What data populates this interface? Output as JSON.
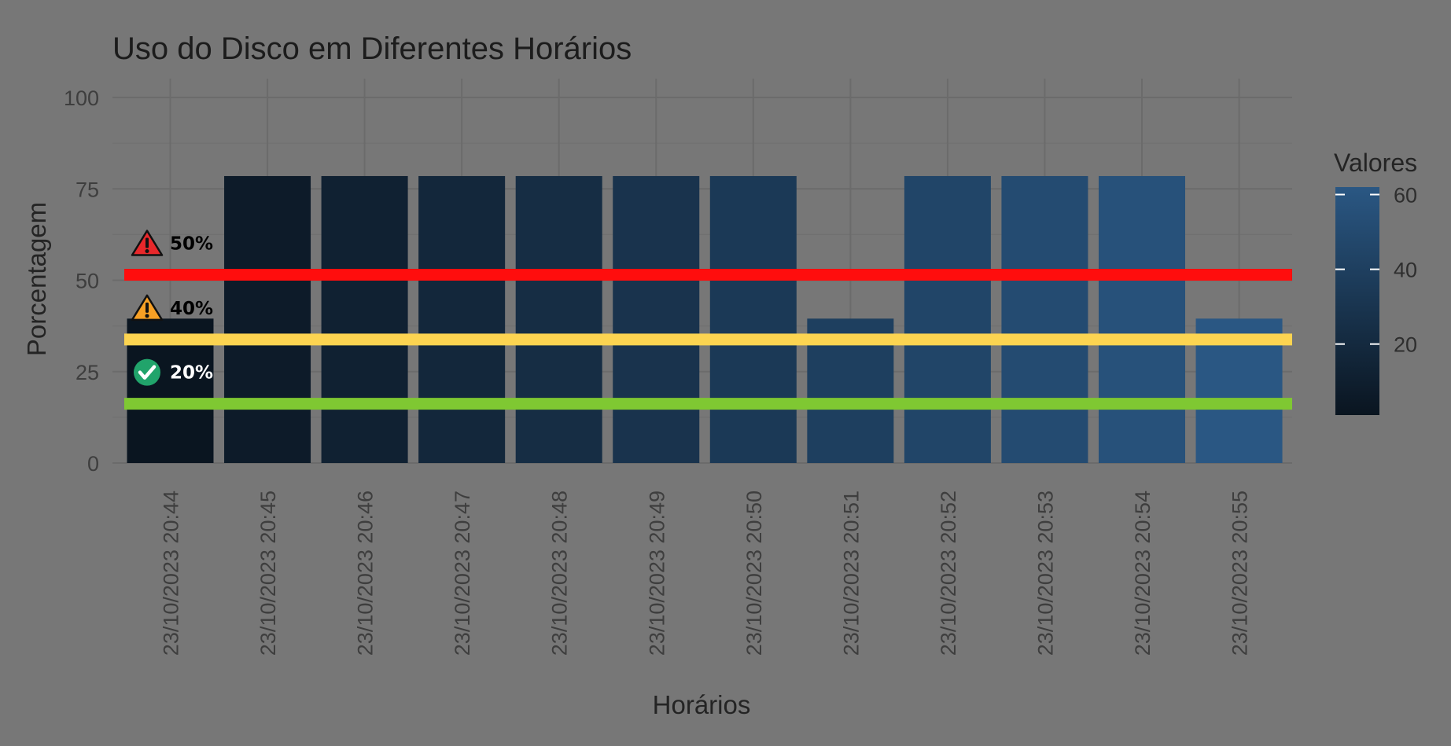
{
  "chart_data": {
    "type": "bar",
    "title": "Uso do Disco em Diferentes Horários",
    "xlabel": "Horários",
    "ylabel": "Porcentagem",
    "ylim": [
      0,
      100
    ],
    "yticks": [
      0,
      25,
      50,
      75,
      100
    ],
    "grid": true,
    "categories": [
      "23/10/2023 20:44",
      "23/10/2023 20:45",
      "23/10/2023 20:46",
      "23/10/2023 20:47",
      "23/10/2023 20:48",
      "23/10/2023 20:49",
      "23/10/2023 20:50",
      "23/10/2023 20:51",
      "23/10/2023 20:52",
      "23/10/2023 20:53",
      "23/10/2023 20:54",
      "23/10/2023 20:55"
    ],
    "values": [
      39.5,
      78.5,
      78.5,
      78.5,
      78.5,
      78.5,
      78.5,
      39.5,
      78.5,
      78.5,
      78.5,
      39.5
    ],
    "legend": {
      "title": "Valores",
      "position": "right",
      "ticks": [
        20,
        40,
        60
      ],
      "range": [
        1,
        62
      ],
      "color_low": "#0a1520",
      "color_high": "#2a5783"
    },
    "thresholds": [
      {
        "label": "50%",
        "y": 51.5,
        "color": "#ff0d0d",
        "icon": "warning-red-icon",
        "label_color": "#000000"
      },
      {
        "label": "40%",
        "y": 33.8,
        "color": "#fcd451",
        "icon": "warning-orange-icon",
        "label_color": "#000000"
      },
      {
        "label": "20%",
        "y": 16.2,
        "color": "#7fc832",
        "icon": "check-circle-icon",
        "label_color": "#ffffff"
      }
    ]
  }
}
